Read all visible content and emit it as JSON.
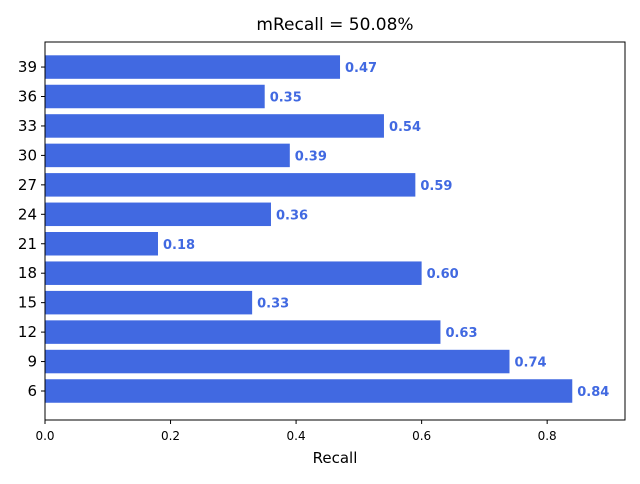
{
  "chart_data": {
    "type": "bar",
    "orientation": "horizontal",
    "title": "mRecall = 50.08%",
    "xlabel": "Recall",
    "ylabel": "",
    "xlim": [
      0,
      0.924
    ],
    "x_ticks": [
      0.0,
      0.2,
      0.4,
      0.6,
      0.8
    ],
    "x_tick_labels": [
      "0.0",
      "0.2",
      "0.4",
      "0.6",
      "0.8"
    ],
    "categories": [
      "6",
      "9",
      "12",
      "15",
      "18",
      "21",
      "24",
      "27",
      "30",
      "33",
      "36",
      "39"
    ],
    "values": [
      0.84,
      0.74,
      0.63,
      0.33,
      0.6,
      0.18,
      0.36,
      0.59,
      0.39,
      0.54,
      0.35,
      0.47
    ],
    "value_labels": [
      "0.84",
      "0.74",
      "0.63",
      "0.33",
      "0.60",
      "0.18",
      "0.36",
      "0.59",
      "0.39",
      "0.54",
      "0.35",
      "0.47"
    ],
    "bar_color": "#4169e1",
    "label_color": "#4169e1",
    "grid": false,
    "legend": "none"
  }
}
